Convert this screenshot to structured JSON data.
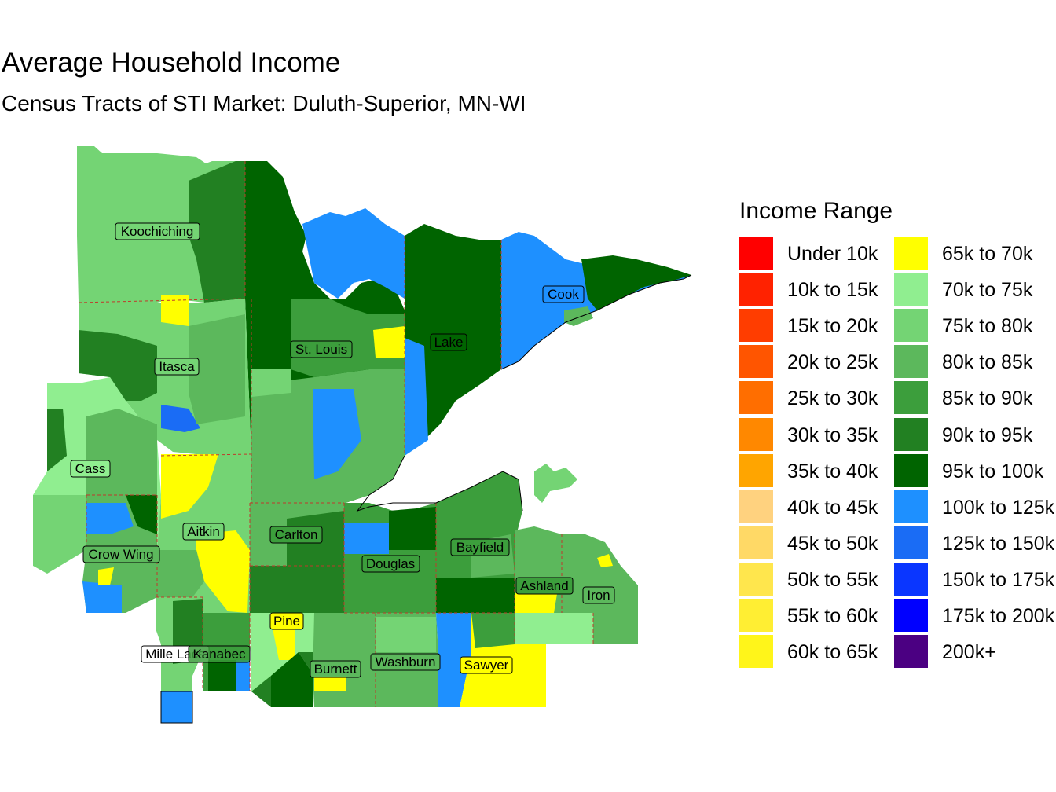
{
  "title": "Average Household Income",
  "subtitle": "Census Tracts of STI Market: Duluth-Superior, MN-WI",
  "legend": {
    "title": "Income Range",
    "items": [
      {
        "label": "Under 10k",
        "color": "#ff0000"
      },
      {
        "label": "10k to 15k",
        "color": "#ff2200"
      },
      {
        "label": "15k to 20k",
        "color": "#ff3d00"
      },
      {
        "label": "20k to 25k",
        "color": "#ff5500"
      },
      {
        "label": "25k to 30k",
        "color": "#ff6e00"
      },
      {
        "label": "30k to 35k",
        "color": "#ff8800"
      },
      {
        "label": "35k to 40k",
        "color": "#ffa500"
      },
      {
        "label": "40k to 45k",
        "color": "#ffd27f"
      },
      {
        "label": "45k to 50k",
        "color": "#ffd966"
      },
      {
        "label": "50k to 55k",
        "color": "#ffe64d"
      },
      {
        "label": "55k to 60k",
        "color": "#ffee33"
      },
      {
        "label": "60k to 65k",
        "color": "#fff51a"
      },
      {
        "label": "65k to 70k",
        "color": "#ffff00"
      },
      {
        "label": "70k to 75k",
        "color": "#90ee90"
      },
      {
        "label": "75k to 80k",
        "color": "#74d474"
      },
      {
        "label": "80k to 85k",
        "color": "#5cb85c"
      },
      {
        "label": "85k to 90k",
        "color": "#3c9e3c"
      },
      {
        "label": "90k to 95k",
        "color": "#228022"
      },
      {
        "label": "95k to 100k",
        "color": "#006400"
      },
      {
        "label": "100k to 125k",
        "color": "#1e90ff"
      },
      {
        "label": "125k to 150k",
        "color": "#1a6cf5"
      },
      {
        "label": "150k to 175k",
        "color": "#0a36ff"
      },
      {
        "label": "175k to 200k",
        "color": "#0000ff"
      },
      {
        "label": "200k+",
        "color": "#4b0082"
      }
    ]
  },
  "counties": [
    "Koochiching",
    "Cook",
    "Lake",
    "St. Louis",
    "Itasca",
    "Cass",
    "Aitkin",
    "Carlton",
    "Crow Wing",
    "Douglas",
    "Bayfield",
    "Ashland",
    "Iron",
    "Pine",
    "Mille Lacs",
    "Kanabec",
    "Burnett",
    "Washburn",
    "Sawyer"
  ]
}
